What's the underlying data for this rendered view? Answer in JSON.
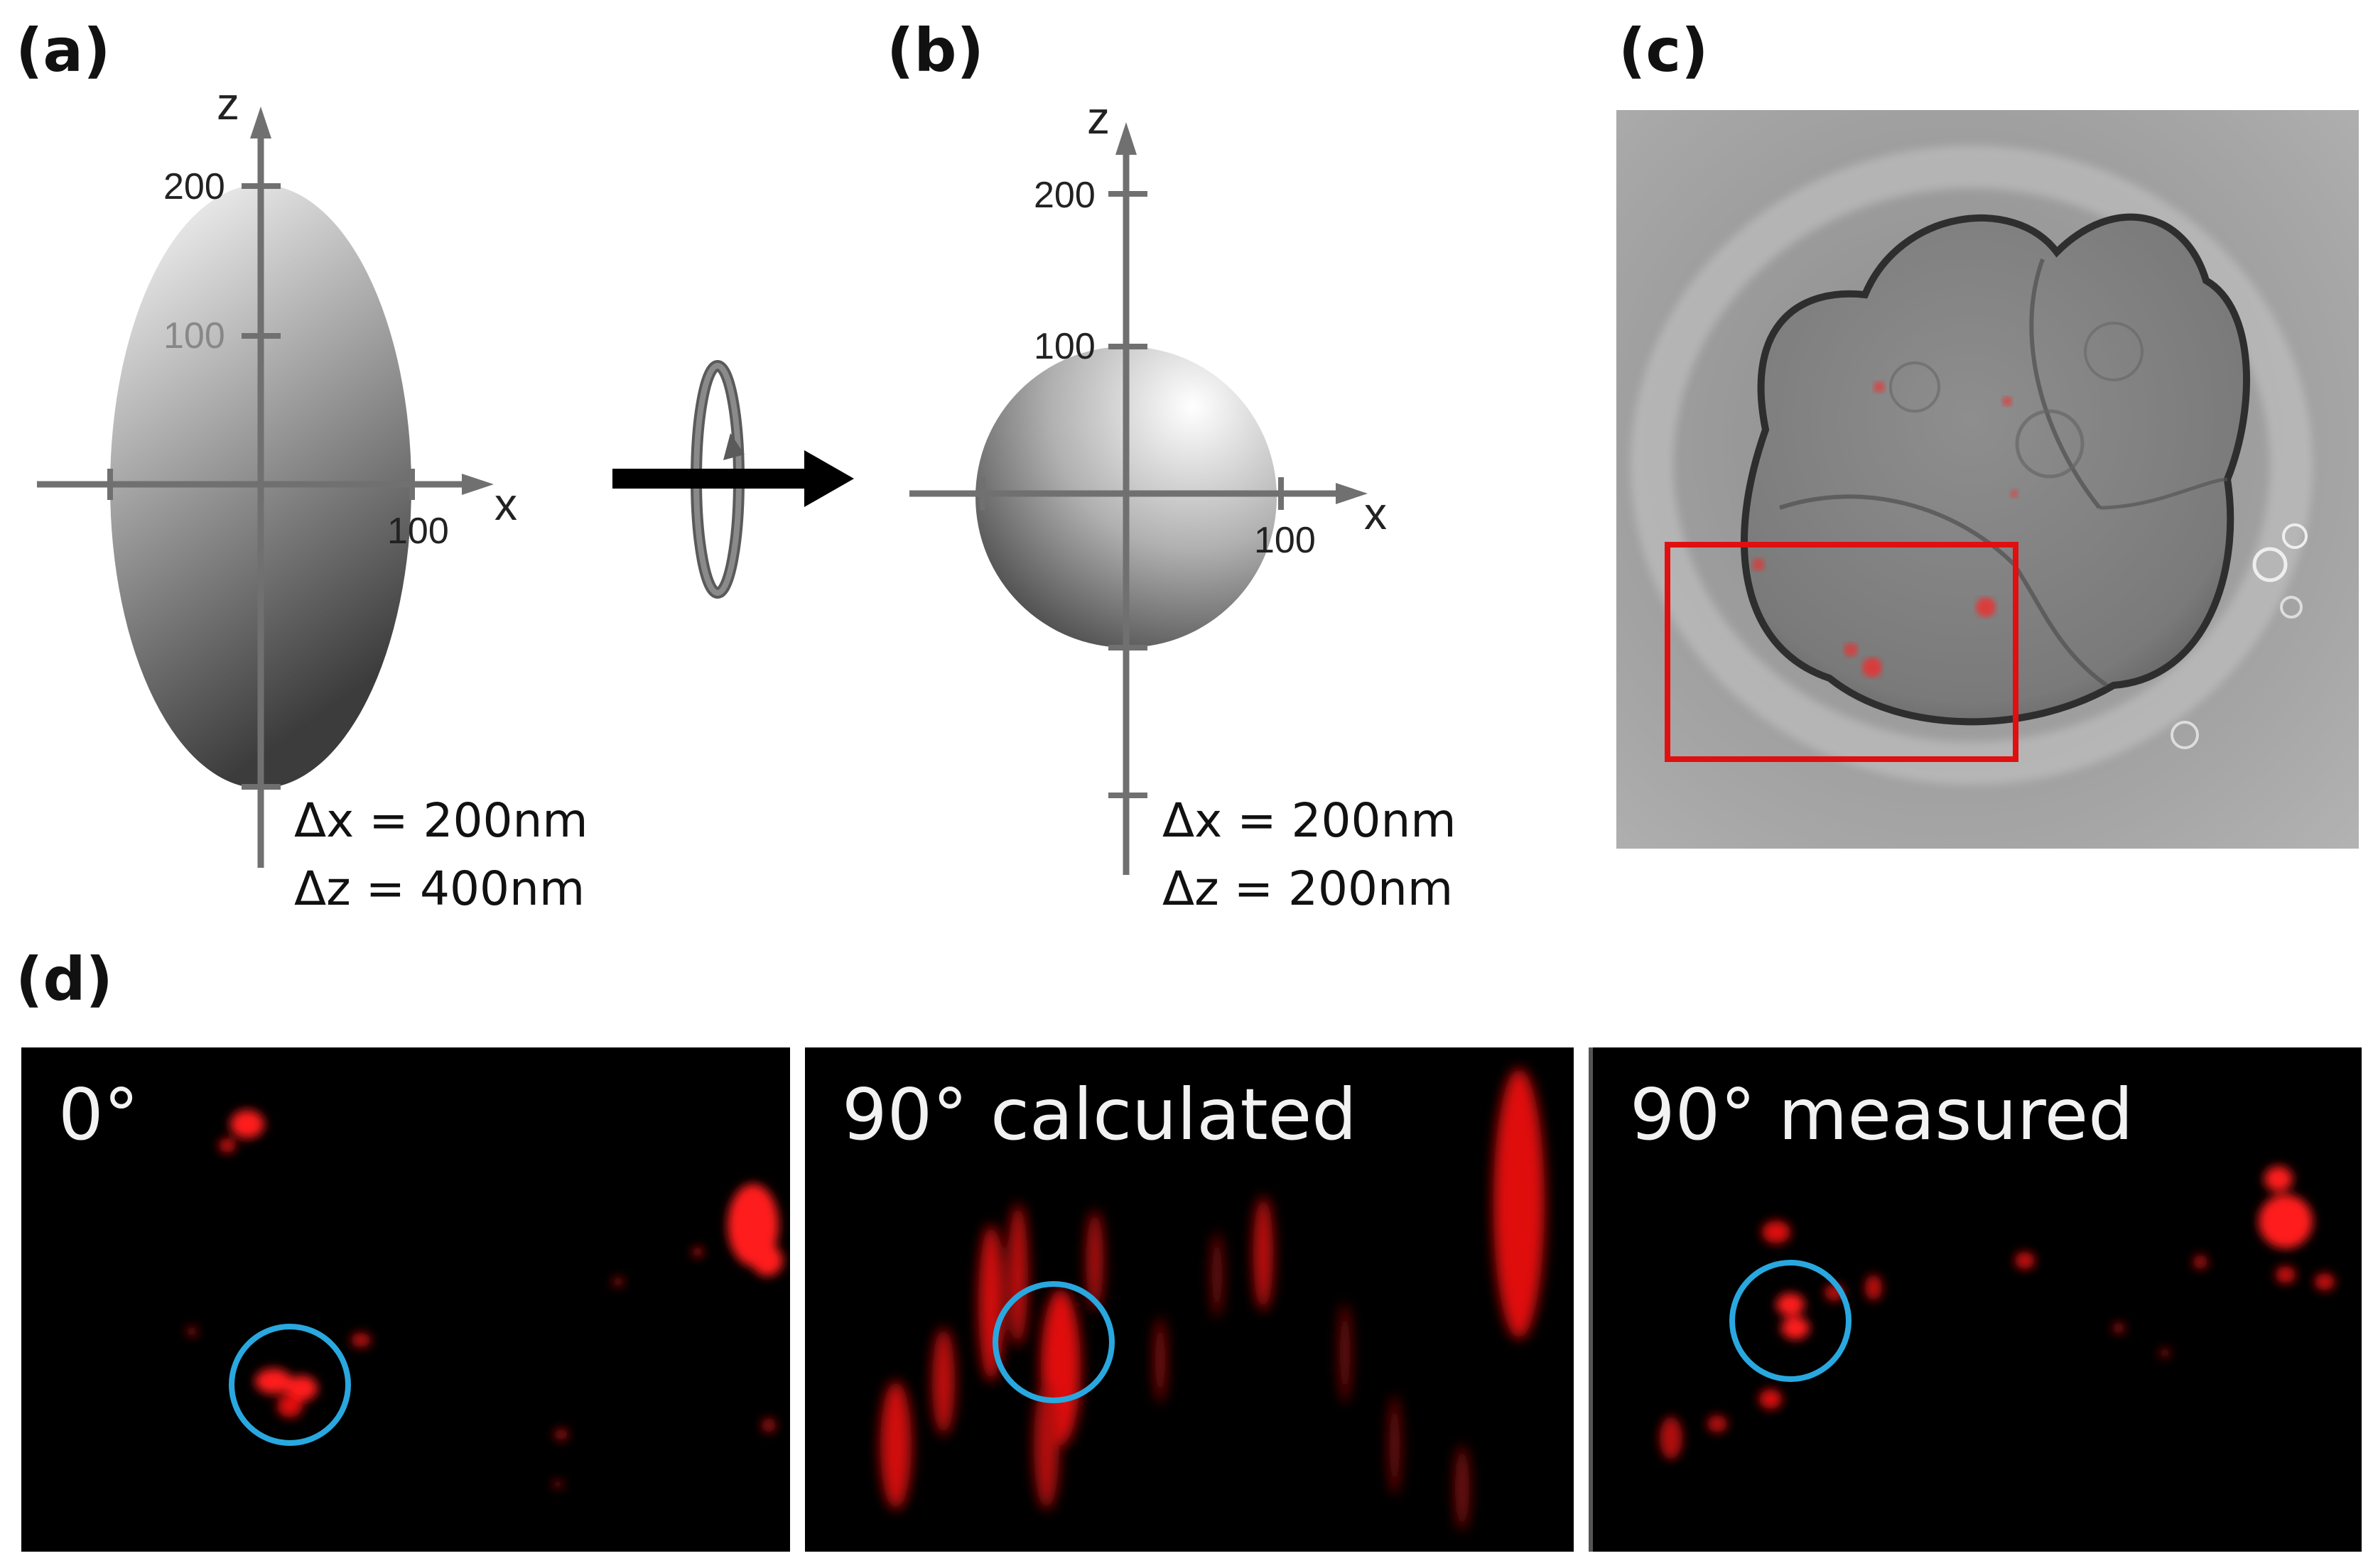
{
  "panels": {
    "a": {
      "label": "(a)",
      "axis_z": "z",
      "axis_x": "x",
      "ticks": [
        "200",
        "100",
        "100"
      ],
      "delta_x": "Δx = 200nm",
      "delta_z": "Δz = 400nm"
    },
    "b": {
      "label": "(b)",
      "axis_z": "z",
      "axis_x": "x",
      "ticks": [
        "200",
        "100",
        "100"
      ],
      "delta_x": "Δx = 200nm",
      "delta_z": "Δz = 200nm"
    },
    "c": {
      "label": "(c)"
    },
    "d": {
      "label": "(d)",
      "sub": [
        "0°",
        "90° calculated",
        "90° measured"
      ]
    }
  },
  "colors": {
    "highlight_circle": "#29a8e0",
    "roi_box": "#e01010",
    "fluorescence": "#ff1a1a"
  }
}
